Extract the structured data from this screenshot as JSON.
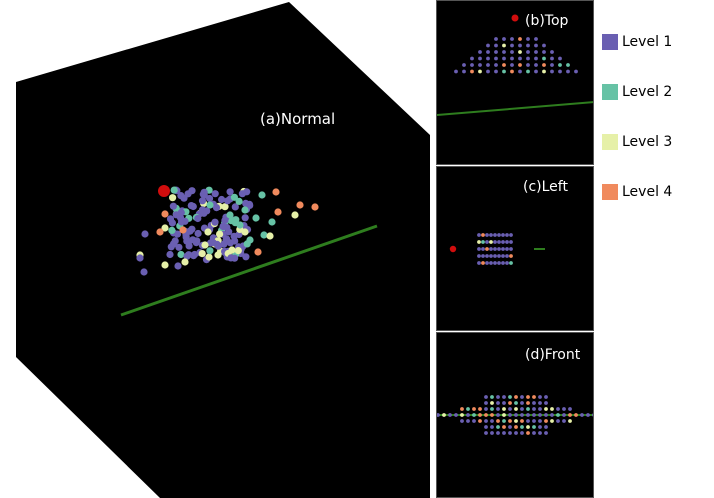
{
  "views": {
    "normal": {
      "label": "(a)Normal"
    },
    "top": {
      "label": "(b)Top"
    },
    "left": {
      "label": "(c)Left"
    },
    "front": {
      "label": "(d)Front"
    }
  },
  "legend": {
    "items": [
      {
        "label": "Level 1",
        "color": "#6a5fb2"
      },
      {
        "label": "Level 2",
        "color": "#66c2a5"
      },
      {
        "label": "Level 3",
        "color": "#e6f0a8"
      },
      {
        "label": "Level 4",
        "color": "#f08a5d"
      }
    ]
  },
  "colors": {
    "background": "#000000",
    "axis_line": "#2e7d1e",
    "root_node": "#d10d0d"
  }
}
